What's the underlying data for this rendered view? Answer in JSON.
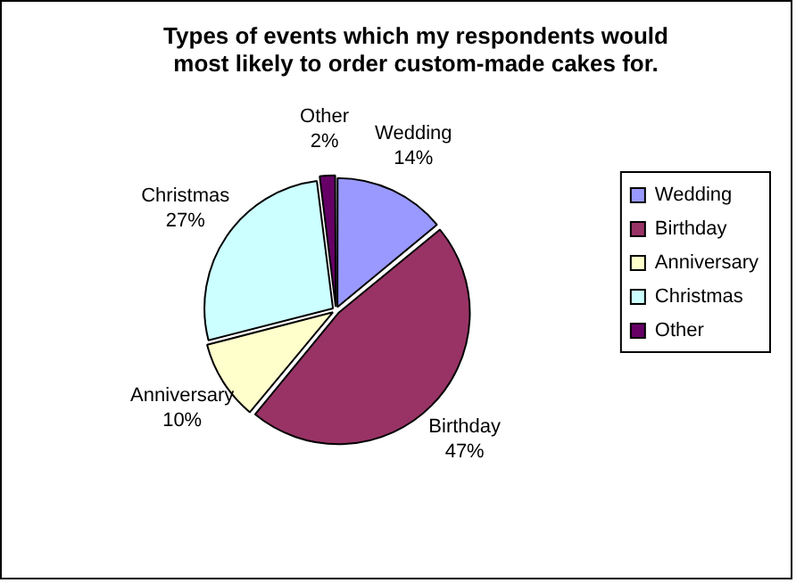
{
  "chart_data": {
    "type": "pie",
    "title": "Types of events which my respondents would most likely to order custom-made cakes for.",
    "categories": [
      "Wedding",
      "Birthday",
      "Anniversary",
      "Christmas",
      "Other"
    ],
    "values": [
      14,
      47,
      10,
      27,
      2
    ],
    "value_labels": [
      "14%",
      "47%",
      "10%",
      "27%",
      "2%"
    ],
    "colors": [
      "#9999ff",
      "#993366",
      "#ffffcc",
      "#ccffff",
      "#660066"
    ],
    "legend": "right"
  }
}
